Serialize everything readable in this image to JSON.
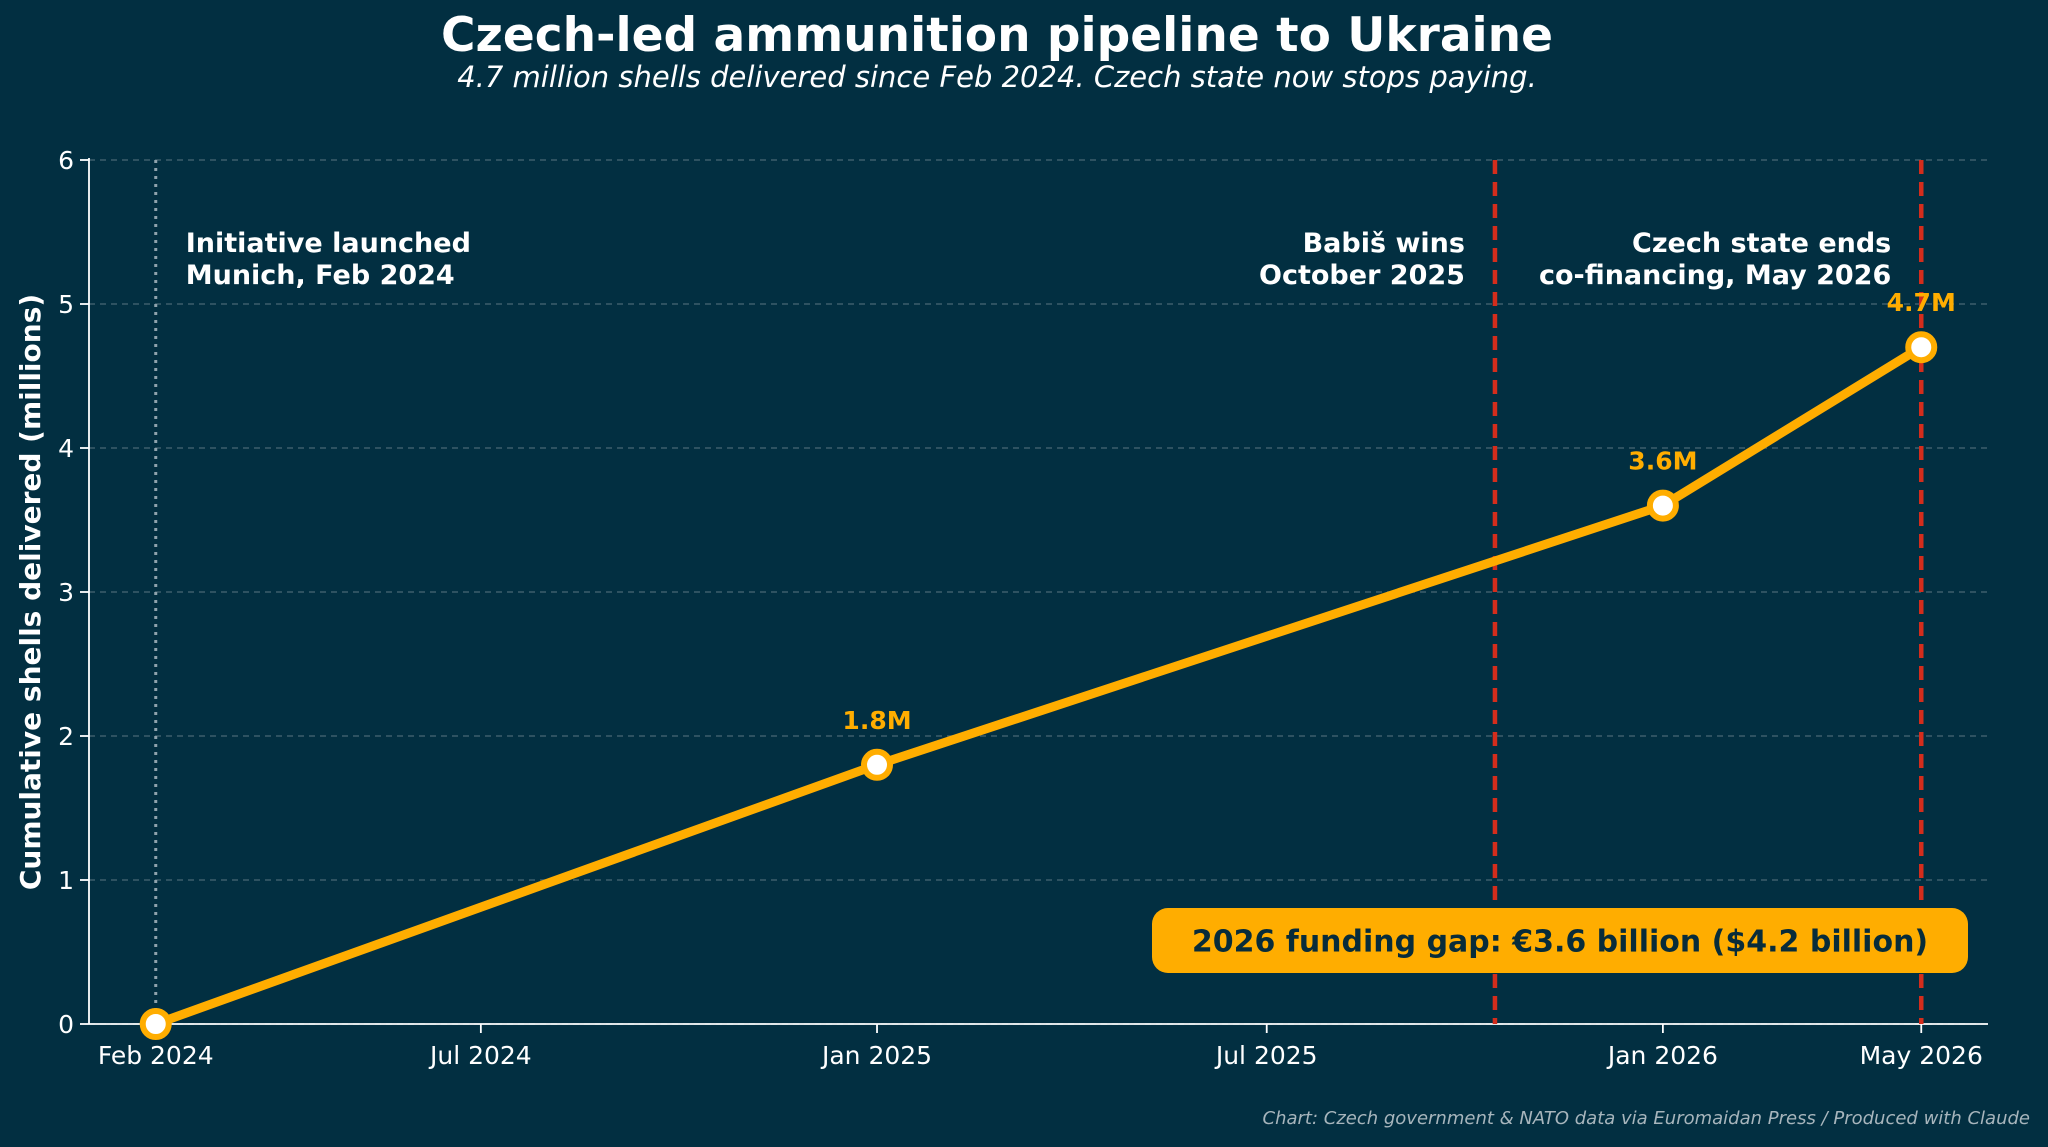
{
  "chart_data": {
    "type": "line",
    "title": "Czech-led ammunition pipeline to Ukraine",
    "subtitle": "4.7 million shells delivered since Feb 2024. Czech state now stops paying.",
    "xlabel": "",
    "ylabel": "Cumulative shells delivered (millions)",
    "xlim": [
      "2024-01-01",
      "2026-06-01"
    ],
    "ylim": [
      0,
      6
    ],
    "yticks": [
      0,
      1,
      2,
      3,
      4,
      5,
      6
    ],
    "xticks": [
      {
        "date": "2024-02-01",
        "label": "Feb 2024"
      },
      {
        "date": "2024-07-01",
        "label": "Jul 2024"
      },
      {
        "date": "2025-01-01",
        "label": "Jan 2025"
      },
      {
        "date": "2025-07-01",
        "label": "Jul 2025"
      },
      {
        "date": "2026-01-01",
        "label": "Jan 2026"
      },
      {
        "date": "2026-05-01",
        "label": "May 2026"
      }
    ],
    "grid": "horizontal dashed",
    "series": [
      {
        "color": "#ffad00",
        "points": [
          {
            "x": "2024-02-01",
            "y": 0,
            "label": ""
          },
          {
            "x": "2025-01-01",
            "y": 1.8,
            "label": "1.8M"
          },
          {
            "x": "2026-01-01",
            "y": 3.6,
            "label": "3.6M"
          },
          {
            "x": "2026-05-01",
            "y": 4.7,
            "label": "4.7M"
          }
        ]
      }
    ],
    "events": [
      {
        "date": "2024-02-01",
        "style": "dotted",
        "color": "#8fa3ad",
        "lines": [
          "Initiative launched",
          "Munich, Feb 2024"
        ],
        "align": "left"
      },
      {
        "date": "2025-10-15",
        "style": "dashed",
        "color": "#d42d1c",
        "lines": [
          "Babiš wins",
          "October 2025"
        ],
        "align": "right"
      },
      {
        "date": "2026-05-01",
        "style": "dashed",
        "color": "#d42d1c",
        "lines": [
          "Czech state ends",
          "co-financing, May 2026"
        ],
        "align": "right"
      }
    ],
    "callout": "2026 funding gap: €3.6 billion ($4.2 billion)",
    "source": "Chart: Czech government & NATO data via Euromaidan Press / Produced with Claude"
  },
  "colors": {
    "background": "#022f41",
    "line": "#ffad00",
    "event_line": "#d42d1c",
    "launch_line": "#8fa3ad",
    "grid": "#3c5f6c",
    "callout_bg": "#ffad00",
    "callout_text": "#082c3a",
    "point_label": "#ffad00"
  }
}
